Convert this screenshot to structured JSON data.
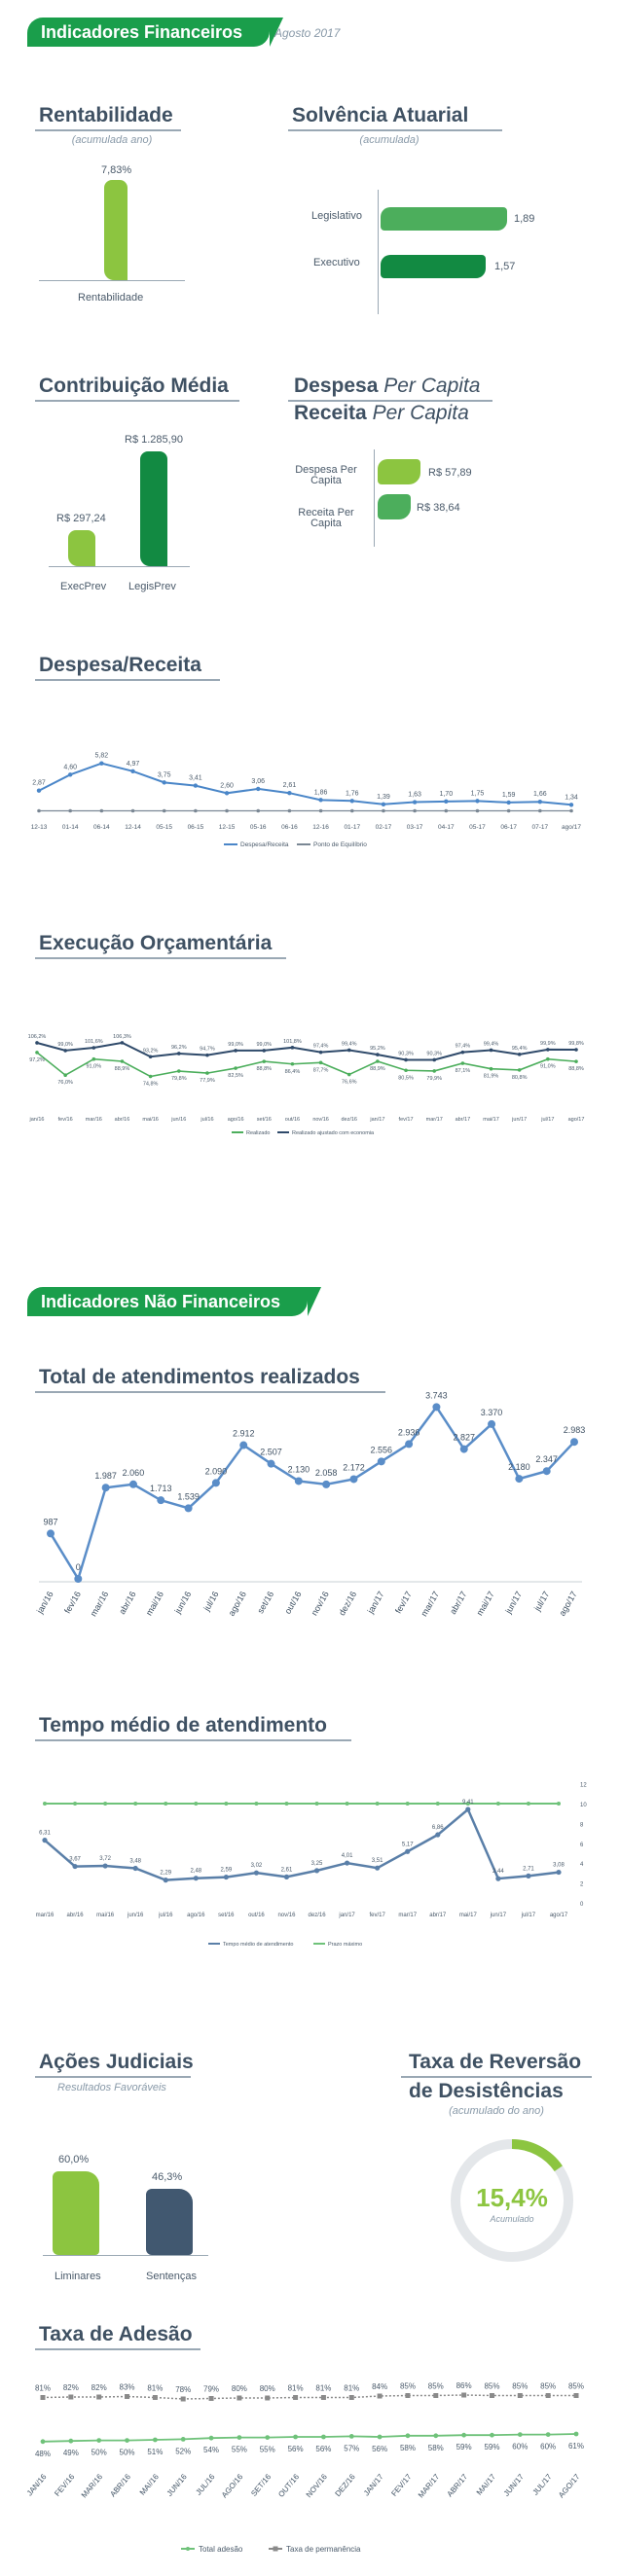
{
  "header": {
    "title": "Indicadores Financeiros",
    "date": "Agosto 2017"
  },
  "rentabilidade": {
    "title": "Rentabilidade",
    "subtitle": "(acumulada ano)",
    "value_label": "7,83%",
    "category": "Rentabilidade",
    "value": 7.83
  },
  "solvencia": {
    "title": "Solvência Atuarial",
    "subtitle": "(acumulada)",
    "items": [
      {
        "label": "Legislativo",
        "value_label": "1,89",
        "value": 1.89,
        "color": "#4cae5c"
      },
      {
        "label": "Executivo",
        "value_label": "1,57",
        "value": 1.57,
        "color": "#128a42"
      }
    ]
  },
  "contribuicao": {
    "title": "Contribuição Média",
    "items": [
      {
        "label": "ExecPrev",
        "value_label": "R$ 297,24",
        "value": 297.24,
        "color": "#8cc540"
      },
      {
        "label": "LegisPrev",
        "value_label": "R$ 1.285,90",
        "value": 1285.9,
        "color": "#128a42"
      }
    ]
  },
  "percapita": {
    "title1_bold": "Despesa",
    "title1_italic": "Per Capita",
    "title2_bold": "Receita",
    "title2_italic": "Per Capita",
    "items": [
      {
        "label1": "Despesa Per",
        "label2": "Capita",
        "value_label": "R$ 57,89",
        "value": 57.89,
        "color": "#8cc540"
      },
      {
        "label1": "Receita Per",
        "label2": "Capita",
        "value_label": "R$ 38,64",
        "value": 38.64,
        "color": "#4cae5c"
      }
    ]
  },
  "despesa_receita": {
    "title": "Despesa/Receita",
    "x": [
      "12-13",
      "01-14",
      "06-14",
      "12-14",
      "05-15",
      "06-15",
      "12-15",
      "05-16",
      "06-16",
      "12-16",
      "01-17",
      "02-17",
      "03-17",
      "04-17",
      "05-17",
      "06-17",
      "07-17",
      "ago/17"
    ],
    "values": [
      2.87,
      4.6,
      5.82,
      4.97,
      3.75,
      3.41,
      2.6,
      3.06,
      2.61,
      1.86,
      1.76,
      1.39,
      1.63,
      1.7,
      1.75,
      1.59,
      1.66,
      1.34
    ],
    "labels": [
      "2,87",
      "4,60",
      "5,82",
      "4,97",
      "3,75",
      "3,41",
      "2,60",
      "3,06",
      "2,61",
      "1,86",
      "1,76",
      "1,39",
      "1,63",
      "1,70",
      "1,75",
      "1,59",
      "1,66",
      "1,34"
    ],
    "legend": [
      "Despesa/Receita",
      "Ponto de Equilíbrio"
    ],
    "colors": {
      "line": "#4a86c8",
      "eq": "#7a8794"
    }
  },
  "execucao": {
    "title": "Execução Orçamentária",
    "x": [
      "jan/16",
      "fev/16",
      "mar/16",
      "abr/16",
      "mai/16",
      "jun/16",
      "jul/16",
      "ago/16",
      "set/16",
      "out/16",
      "nov/16",
      "dez/16",
      "jan/17",
      "fev/17",
      "mar/17",
      "abr/17",
      "mai/17",
      "jun/17",
      "jul/17",
      "ago/17"
    ],
    "realizado": [
      97.2,
      76.0,
      91.0,
      88.9,
      74.8,
      79.8,
      77.9,
      82.5,
      88.8,
      86.4,
      87.7,
      76.6,
      88.9,
      80.5,
      79.9,
      87.1,
      81.9,
      80.8,
      91.0,
      88.8
    ],
    "realizado_labels": [
      "97,2%",
      "76,0%",
      "91,0%",
      "88,9%",
      "74,8%",
      "79,8%",
      "77,9%",
      "82,5%",
      "88,8%",
      "86,4%",
      "87,7%",
      "76,6%",
      "88,9%",
      "80,5%",
      "79,9%",
      "87,1%",
      "81,9%",
      "80,8%",
      "91,0%",
      "88,8%"
    ],
    "economia": [
      106.2,
      99.0,
      101.6,
      106.3,
      93.2,
      96.2,
      94.7,
      99.0,
      99.0,
      101.8,
      97.4,
      99.4,
      95.2,
      90.3,
      90.3,
      97.4,
      99.4,
      95.4,
      99.9,
      99.8
    ],
    "economia_labels": [
      "106,2%",
      "99,0%",
      "101,6%",
      "106,3%",
      "93,2%",
      "96,2%",
      "94,7%",
      "99,0%",
      "99,0%",
      "101,8%",
      "97,4%",
      "99,4%",
      "95,2%",
      "90,3%",
      "90,3%",
      "97,4%",
      "99,4%",
      "95,4%",
      "99,9%",
      "99,8%"
    ],
    "legend": [
      "Realizado",
      "Realizado ajustado com economia"
    ],
    "colors": {
      "realizado": "#4cae5c",
      "economia": "#2f4a6a"
    }
  },
  "header2": {
    "title": "Indicadores Não Financeiros"
  },
  "atendimentos": {
    "title": "Total de atendimentos realizados",
    "x": [
      "jan/16",
      "fev/16",
      "mar/16",
      "abr/16",
      "mai/16",
      "jun/16",
      "jul/16",
      "ago/16",
      "set/16",
      "out/16",
      "nov/16",
      "dez/16",
      "jan/17",
      "fev/17",
      "mar/17",
      "abr/17",
      "mai/17",
      "jun/17",
      "jul/17",
      "ago/17"
    ],
    "values": [
      987,
      0,
      1987,
      2060,
      1713,
      1539,
      2090,
      2912,
      2507,
      2130,
      2058,
      2172,
      2556,
      2936,
      3743,
      2827,
      3370,
      2180,
      2347,
      2983
    ],
    "labels": [
      "987",
      "0",
      "1.987",
      "2.060",
      "1.713",
      "1.539",
      "2.090",
      "2.912",
      "2.507",
      "2.130",
      "2.058",
      "2.172",
      "2.556",
      "2.936",
      "3.743",
      "2.827",
      "3.370",
      "2.180",
      "2.347",
      "2.983"
    ],
    "color": "#5a8dc8"
  },
  "tempo": {
    "title": "Tempo médio de atendimento",
    "x": [
      "mar/16",
      "abr/16",
      "mai/16",
      "jun/16",
      "jul/16",
      "ago/16",
      "set/16",
      "out/16",
      "nov/16",
      "dez/16",
      "jan/17",
      "fev/17",
      "mar/17",
      "abr/17",
      "mai/17",
      "jun/17",
      "jul/17",
      "ago/17"
    ],
    "values": [
      6.31,
      3.67,
      3.72,
      3.48,
      2.29,
      2.48,
      2.59,
      3.02,
      2.61,
      3.25,
      4.01,
      3.51,
      5.17,
      6.86,
      9.41,
      2.44,
      2.71,
      3.08
    ],
    "labels": [
      "6,31",
      "3,67",
      "3,72",
      "3,48",
      "2,29",
      "2,48",
      "2,59",
      "3,02",
      "2,61",
      "3,25",
      "4,01",
      "3,51",
      "5,17",
      "6,86",
      "9,41",
      "2,44",
      "2,71",
      "3,08"
    ],
    "meta": 10,
    "yticks": [
      "0",
      "2",
      "4",
      "6",
      "8",
      "10",
      "12"
    ],
    "legend": [
      "Tempo médio de atendimento",
      "Prazo máximo"
    ],
    "colors": {
      "line": "#5a7fa8",
      "meta": "#6fc27a"
    }
  },
  "acoes": {
    "title": "Ações Judiciais",
    "subtitle": "Resultados Favoráveis",
    "items": [
      {
        "label": "Liminares",
        "value_label": "60,0%",
        "value": 60.0,
        "color": "#8cc540"
      },
      {
        "label": "Sentenças",
        "value_label": "46,3%",
        "value": 46.3,
        "color": "#415870"
      }
    ]
  },
  "reversao": {
    "title1": "Taxa de Reversão",
    "title2": "de Desistências",
    "subtitle": "(acumulado do ano)",
    "value_label": "15,4%",
    "value": 15.4,
    "inner": "Acumulado",
    "color": "#8cc540"
  },
  "adesao": {
    "title": "Taxa de Adesão",
    "x": [
      "JAN/16",
      "FEV/16",
      "MAR/16",
      "ABR/16",
      "MAI/16",
      "JUN/16",
      "JUL/16",
      "AGO/16",
      "SET/16",
      "OUT/16",
      "NOV/16",
      "DEZ/16",
      "JAN/17",
      "FEV/17",
      "MAR/17",
      "ABR/17",
      "MAI/17",
      "JUN/17",
      "JUL/17",
      "AGO/17"
    ],
    "permanencia": [
      81,
      82,
      82,
      83,
      81,
      78,
      79,
      80,
      80,
      81,
      81,
      81,
      84,
      85,
      85,
      86,
      85,
      85,
      85,
      85
    ],
    "permanencia_labels": [
      "81%",
      "82%",
      "82%",
      "83%",
      "81%",
      "78%",
      "79%",
      "80%",
      "80%",
      "81%",
      "81%",
      "81%",
      "84%",
      "85%",
      "85%",
      "86%",
      "85%",
      "85%",
      "85%",
      "85%"
    ],
    "total": [
      48,
      49,
      50,
      50,
      51,
      52,
      54,
      55,
      55,
      56,
      56,
      57,
      56,
      58,
      58,
      59,
      59,
      60,
      60,
      61
    ],
    "total_labels": [
      "48%",
      "49%",
      "50%",
      "50%",
      "51%",
      "52%",
      "54%",
      "55%",
      "55%",
      "56%",
      "56%",
      "57%",
      "56%",
      "58%",
      "58%",
      "59%",
      "59%",
      "60%",
      "60%",
      "61%"
    ],
    "legend": [
      "Total adesão",
      "Taxa de permanência"
    ],
    "colors": {
      "total": "#6fc27a",
      "permanencia": "#8a8a8a"
    }
  },
  "chart_data": [
    {
      "type": "bar",
      "title": "Rentabilidade",
      "categories": [
        "Rentabilidade"
      ],
      "values": [
        7.83
      ]
    },
    {
      "type": "bar",
      "title": "Solvência Atuarial",
      "categories": [
        "Legislativo",
        "Executivo"
      ],
      "values": [
        1.89,
        1.57
      ]
    },
    {
      "type": "bar",
      "title": "Contribuição Média",
      "categories": [
        "ExecPrev",
        "LegisPrev"
      ],
      "values": [
        297.24,
        1285.9
      ]
    },
    {
      "type": "bar",
      "categories": [
        "Despesa Per Capita",
        "Receita Per Capita"
      ],
      "values": [
        57.89,
        38.64
      ]
    },
    {
      "type": "line",
      "title": "Despesa/Receita",
      "x": [
        "12-13",
        "01-14",
        "06-14",
        "12-14",
        "05-15",
        "06-15",
        "12-15",
        "05-16",
        "06-16",
        "12-16",
        "01-17",
        "02-17",
        "03-17",
        "04-17",
        "05-17",
        "06-17",
        "07-17",
        "ago/17"
      ],
      "series": [
        {
          "name": "Despesa/Receita",
          "values": [
            2.87,
            4.6,
            5.82,
            4.97,
            3.75,
            3.41,
            2.6,
            3.06,
            2.61,
            1.86,
            1.76,
            1.39,
            1.63,
            1.7,
            1.75,
            1.59,
            1.66,
            1.34
          ]
        }
      ]
    },
    {
      "type": "line",
      "title": "Execução Orçamentária",
      "x": [
        "jan/16",
        "fev/16",
        "mar/16",
        "abr/16",
        "mai/16",
        "jun/16",
        "jul/16",
        "ago/16",
        "set/16",
        "out/16",
        "nov/16",
        "dez/16",
        "jan/17",
        "fev/17",
        "mar/17",
        "abr/17",
        "mai/17",
        "jun/17",
        "jul/17",
        "ago/17"
      ],
      "series": [
        {
          "name": "Realizado",
          "values": [
            97.2,
            76.0,
            91.0,
            88.9,
            74.8,
            79.8,
            77.9,
            82.5,
            88.8,
            86.4,
            87.7,
            76.6,
            88.9,
            80.5,
            79.9,
            87.1,
            81.9,
            80.8,
            91.0,
            88.8
          ]
        },
        {
          "name": "Realizado ajustado com economia",
          "values": [
            106.2,
            99.0,
            101.6,
            106.3,
            93.2,
            96.2,
            94.7,
            99.0,
            99.0,
            101.8,
            97.4,
            99.4,
            95.2,
            90.3,
            90.3,
            97.4,
            99.4,
            95.4,
            99.9,
            99.8
          ]
        }
      ]
    },
    {
      "type": "line",
      "title": "Total de atendimentos realizados",
      "x": [
        "jan/16",
        "fev/16",
        "mar/16",
        "abr/16",
        "mai/16",
        "jun/16",
        "jul/16",
        "ago/16",
        "set/16",
        "out/16",
        "nov/16",
        "dez/16",
        "jan/17",
        "fev/17",
        "mar/17",
        "abr/17",
        "mai/17",
        "jun/17",
        "jul/17",
        "ago/17"
      ],
      "values": [
        987,
        0,
        1987,
        2060,
        1713,
        1539,
        2090,
        2912,
        2507,
        2130,
        2058,
        2172,
        2556,
        2936,
        3743,
        2827,
        3370,
        2180,
        2347,
        2983
      ]
    },
    {
      "type": "line",
      "title": "Tempo médio de atendimento",
      "ylim": [
        0,
        12
      ],
      "x": [
        "mar/16",
        "abr/16",
        "mai/16",
        "jun/16",
        "jul/16",
        "ago/16",
        "set/16",
        "out/16",
        "nov/16",
        "dez/16",
        "jan/17",
        "fev/17",
        "mar/17",
        "abr/17",
        "mai/17",
        "jun/17",
        "jul/17",
        "ago/17"
      ],
      "series": [
        {
          "name": "Tempo médio de atendimento",
          "values": [
            6.31,
            3.67,
            3.72,
            3.48,
            2.29,
            2.48,
            2.59,
            3.02,
            2.61,
            3.25,
            4.01,
            3.51,
            5.17,
            6.86,
            9.41,
            2.44,
            2.71,
            3.08
          ]
        },
        {
          "name": "Prazo máximo",
          "values": [
            10,
            10,
            10,
            10,
            10,
            10,
            10,
            10,
            10,
            10,
            10,
            10,
            10,
            10,
            10,
            10,
            10,
            10
          ]
        }
      ]
    },
    {
      "type": "bar",
      "title": "Ações Judiciais",
      "categories": [
        "Liminares",
        "Sentenças"
      ],
      "values": [
        60.0,
        46.3
      ]
    },
    {
      "type": "pie",
      "title": "Taxa de Reversão de Desistências",
      "values": [
        15.4
      ]
    },
    {
      "type": "line",
      "title": "Taxa de Adesão",
      "x": [
        "JAN/16",
        "FEV/16",
        "MAR/16",
        "ABR/16",
        "MAI/16",
        "JUN/16",
        "JUL/16",
        "AGO/16",
        "SET/16",
        "OUT/16",
        "NOV/16",
        "DEZ/16",
        "JAN/17",
        "FEV/17",
        "MAR/17",
        "ABR/17",
        "MAI/17",
        "JUN/17",
        "JUL/17",
        "AGO/17"
      ],
      "series": [
        {
          "name": "Total adesão",
          "values": [
            48,
            49,
            50,
            50,
            51,
            52,
            54,
            55,
            55,
            56,
            56,
            57,
            56,
            58,
            58,
            59,
            59,
            60,
            60,
            61
          ]
        },
        {
          "name": "Taxa de permanência",
          "values": [
            81,
            82,
            82,
            83,
            81,
            78,
            79,
            80,
            80,
            81,
            81,
            81,
            84,
            85,
            85,
            86,
            85,
            85,
            85,
            85
          ]
        }
      ]
    }
  ]
}
